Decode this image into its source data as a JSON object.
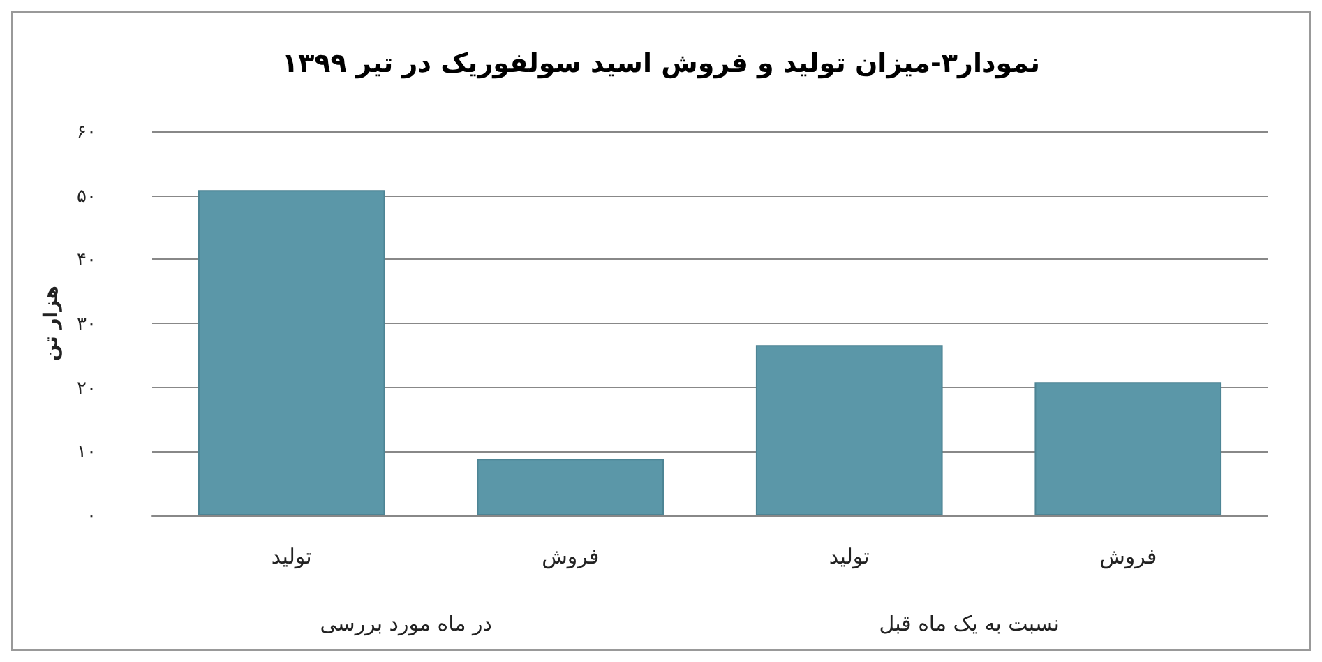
{
  "chart_data": {
    "type": "bar",
    "title": "نمودار۳-میزان تولید و فروش اسید سولفوریک در تیر ۱۳۹۹",
    "categories": [
      "تولید",
      "فروش",
      "تولید",
      "فروش"
    ],
    "values": [
      50.8,
      8.8,
      26.6,
      20.8
    ],
    "color": "#5b97a8",
    "ylabel": "هزار تن",
    "ylim": [
      0,
      60
    ],
    "yticks": [
      {
        "value": 0,
        "label": "۰"
      },
      {
        "value": 10,
        "label": "۱۰"
      },
      {
        "value": 20,
        "label": "۲۰"
      },
      {
        "value": 30,
        "label": "۳۰"
      },
      {
        "value": 40,
        "label": "۴۰"
      },
      {
        "value": 50,
        "label": "۵۰"
      },
      {
        "value": 60,
        "label": "۶۰"
      }
    ],
    "annotations": [
      "در ماه مورد بررسی",
      "نسبت به یک ماه قبل"
    ],
    "grid": "y"
  }
}
